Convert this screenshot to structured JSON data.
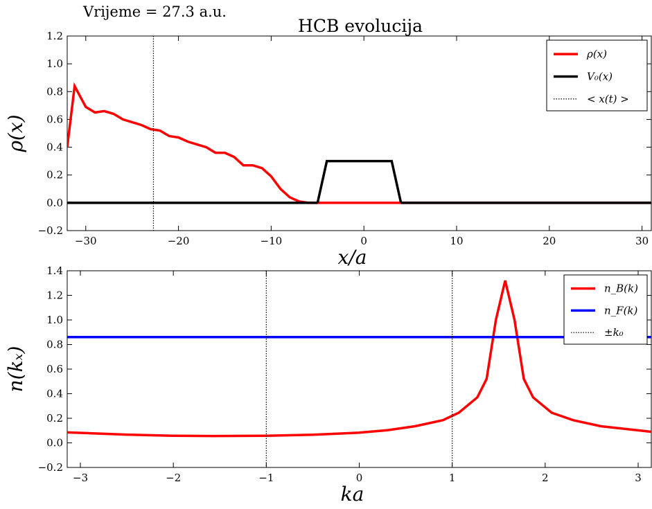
{
  "figure": {
    "time_label": "Vrijeme = 27.3 a.u.",
    "title": "HCB evolucija"
  },
  "chart_data": [
    {
      "type": "line",
      "id": "density",
      "xlabel": "x/a",
      "ylabel": "ρ(x)",
      "xlim": [
        -32,
        31
      ],
      "ylim": [
        -0.2,
        1.2
      ],
      "xticks": [
        -30,
        -20,
        -10,
        0,
        10,
        20,
        30
      ],
      "yticks": [
        -0.2,
        0.0,
        0.2,
        0.4,
        0.6,
        0.8,
        1.0,
        1.2
      ],
      "grid": false,
      "legend": "top-right",
      "series": [
        {
          "name": "ρ(x)",
          "color": "#ff0000",
          "style": "solid",
          "x": [
            -32,
            -31.2,
            -30,
            -29,
            -28,
            -27,
            -26,
            -25,
            -24,
            -23,
            -22,
            -21,
            -20,
            -19,
            -18,
            -17,
            -16,
            -15,
            -14,
            -13,
            -12,
            -11,
            -10,
            -9,
            -8,
            -7,
            -6,
            -5,
            4,
            31
          ],
          "y": [
            0.4,
            0.84,
            0.69,
            0.65,
            0.66,
            0.64,
            0.6,
            0.58,
            0.56,
            0.53,
            0.52,
            0.48,
            0.47,
            0.44,
            0.42,
            0.4,
            0.36,
            0.36,
            0.33,
            0.27,
            0.27,
            0.25,
            0.19,
            0.1,
            0.04,
            0.01,
            0.0,
            0.0,
            0.0,
            0.0
          ]
        },
        {
          "name": "V₀(x)",
          "color": "#000000",
          "style": "solid",
          "segments": [
            {
              "x": [
                -32,
                -5
              ],
              "y": [
                0,
                0
              ]
            },
            {
              "x": [
                -5,
                -4,
                3,
                4
              ],
              "y": [
                0,
                0.3,
                0.3,
                0
              ]
            },
            {
              "x": [
                4,
                31
              ],
              "y": [
                0,
                0
              ]
            }
          ]
        },
        {
          "name": "< x(t) >",
          "color": "#000000",
          "style": "dotted",
          "vlines": [
            -22.7
          ]
        }
      ]
    },
    {
      "type": "line",
      "id": "momentum",
      "xlabel": "ka",
      "ylabel": "n(kₓ)",
      "xlim": [
        -3.1416,
        3.1416
      ],
      "ylim": [
        -0.2,
        1.4
      ],
      "xticks": [
        -3,
        -2,
        -1,
        0,
        1,
        2,
        3
      ],
      "yticks": [
        -0.2,
        0.0,
        0.2,
        0.4,
        0.6,
        0.8,
        1.0,
        1.2,
        1.4
      ],
      "grid": false,
      "legend": "top-right",
      "series": [
        {
          "name": "n_B(k)",
          "color": "#ff0000",
          "style": "solid",
          "x": [
            -3.1416,
            -2.5,
            -2,
            -1.57,
            -1,
            -0.5,
            0,
            0.3,
            0.6,
            0.9,
            1.07,
            1.27,
            1.37,
            1.47,
            1.57,
            1.67,
            1.77,
            1.87,
            2.07,
            2.3,
            2.6,
            3.1416
          ],
          "y": [
            0.085,
            0.067,
            0.058,
            0.056,
            0.058,
            0.066,
            0.083,
            0.103,
            0.135,
            0.185,
            0.245,
            0.37,
            0.52,
            1.0,
            1.32,
            1.0,
            0.52,
            0.37,
            0.245,
            0.185,
            0.135,
            0.09
          ]
        },
        {
          "name": "n_F(k)",
          "color": "#0000ff",
          "style": "solid",
          "x": [
            -3.1416,
            3.1416
          ],
          "y": [
            0.86,
            0.86
          ]
        },
        {
          "name": "±k₀",
          "color": "#000000",
          "style": "dotted",
          "vlines": [
            -1,
            1
          ]
        }
      ]
    }
  ]
}
